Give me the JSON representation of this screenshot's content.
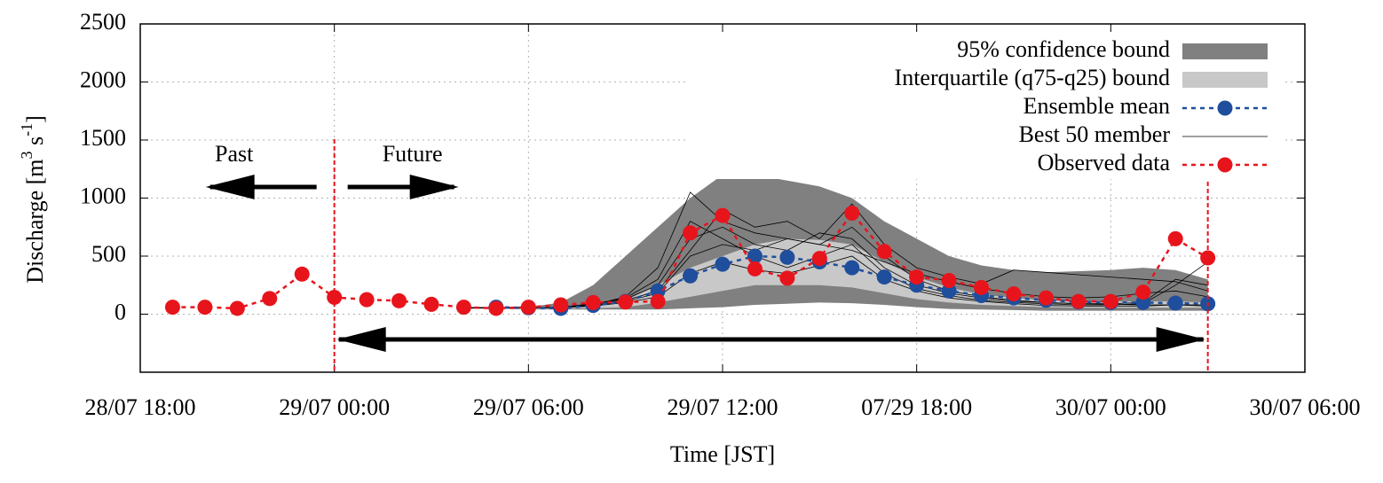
{
  "chart_data": {
    "type": "line",
    "xlabel": "Time [JST]",
    "ylabel": [
      "Discharge [m",
      "3",
      " s",
      "-1",
      "]"
    ],
    "annotations": [
      "Past",
      "Future"
    ],
    "vlines": [
      6,
      33
    ],
    "vline_color": "#e8141c",
    "xlim": [
      0,
      36
    ],
    "ylim": [
      -500,
      2500
    ],
    "xticks": [
      {
        "value": 0,
        "label": "28/07  18:00"
      },
      {
        "value": 6,
        "label": "29/07  00:00"
      },
      {
        "value": 12,
        "label": "29/07  06:00"
      },
      {
        "value": 18,
        "label": "29/07  12:00"
      },
      {
        "value": 24,
        "label": "07/29  18:00"
      },
      {
        "value": 30,
        "label": "30/07  00:00"
      },
      {
        "value": 36,
        "label": "30/07  06:00"
      }
    ],
    "yticks": [
      0,
      500,
      1000,
      1500,
      2000,
      2500
    ],
    "grid": true,
    "legend": "top-right",
    "x": [
      1,
      2,
      3,
      4,
      5,
      6,
      7,
      8,
      9,
      10,
      11,
      12,
      13,
      14,
      15,
      16,
      17,
      18,
      19,
      20,
      21,
      22,
      23,
      24,
      25,
      26,
      27,
      28,
      29,
      30,
      31,
      32,
      33
    ],
    "bands": [
      {
        "name": "95%  confidence bound",
        "color": "#808080",
        "upper": [
          null,
          null,
          null,
          null,
          null,
          null,
          null,
          null,
          null,
          60,
          60,
          60,
          100,
          250,
          500,
          750,
          1000,
          1200,
          1200,
          1150,
          1100,
          1000,
          800,
          650,
          500,
          420,
          380,
          360,
          370,
          380,
          400,
          380,
          300
        ],
        "lower": [
          null,
          null,
          null,
          null,
          null,
          null,
          null,
          null,
          null,
          50,
          45,
          40,
          40,
          40,
          40,
          40,
          50,
          60,
          80,
          90,
          100,
          95,
          80,
          60,
          45,
          40,
          35,
          30,
          30,
          30,
          30,
          30,
          30
        ]
      },
      {
        "name": "Interquartile (q75-q25) bound",
        "color": "#c8c8c8",
        "upper": [
          null,
          null,
          null,
          null,
          null,
          null,
          null,
          null,
          null,
          55,
          55,
          55,
          60,
          80,
          120,
          250,
          400,
          500,
          600,
          650,
          640,
          600,
          450,
          320,
          230,
          170,
          140,
          120,
          110,
          110,
          110,
          110,
          100
        ],
        "lower": [
          null,
          null,
          null,
          null,
          null,
          null,
          null,
          null,
          null,
          45,
          45,
          45,
          48,
          50,
          60,
          100,
          150,
          200,
          250,
          250,
          250,
          230,
          180,
          130,
          100,
          80,
          70,
          60,
          55,
          55,
          55,
          55,
          55
        ]
      }
    ],
    "members": {
      "name": "Best 50 member",
      "color": "#000000",
      "values": [
        [
          null,
          null,
          null,
          null,
          null,
          null,
          null,
          null,
          null,
          55,
          55,
          55,
          60,
          80,
          150,
          400,
          1050,
          800,
          700,
          650,
          600,
          750,
          500,
          300,
          200,
          150,
          120,
          100,
          90,
          85,
          80,
          80,
          70
        ],
        [
          null,
          null,
          null,
          null,
          null,
          null,
          null,
          null,
          null,
          55,
          55,
          55,
          60,
          90,
          130,
          250,
          650,
          750,
          600,
          550,
          700,
          650,
          400,
          250,
          180,
          140,
          110,
          100,
          90,
          90,
          100,
          300,
          250
        ],
        [
          null,
          null,
          null,
          null,
          null,
          null,
          null,
          null,
          null,
          55,
          55,
          55,
          60,
          85,
          140,
          300,
          800,
          650,
          500,
          400,
          500,
          600,
          350,
          220,
          160,
          120,
          100,
          90,
          80,
          80,
          90,
          250,
          450
        ],
        [
          null,
          null,
          null,
          null,
          null,
          null,
          null,
          null,
          null,
          55,
          55,
          55,
          55,
          70,
          100,
          150,
          350,
          450,
          380,
          350,
          420,
          500,
          300,
          200,
          140,
          110,
          90,
          75,
          70,
          70,
          70,
          80,
          80
        ],
        [
          null,
          null,
          null,
          null,
          null,
          null,
          null,
          null,
          null,
          55,
          55,
          55,
          60,
          80,
          120,
          200,
          550,
          900,
          750,
          800,
          650,
          950,
          600,
          400,
          320,
          260,
          380,
          360,
          340,
          320,
          300,
          280,
          200
        ],
        [
          null,
          null,
          null,
          null,
          null,
          null,
          null,
          null,
          null,
          55,
          55,
          55,
          60,
          75,
          110,
          180,
          500,
          600,
          550,
          650,
          600,
          550,
          450,
          350,
          280,
          220,
          180,
          150,
          140,
          150,
          180,
          200,
          150
        ]
      ]
    },
    "series": [
      {
        "name": "Ensemble mean",
        "color": "#1f4e9c",
        "values": [
          null,
          null,
          null,
          null,
          null,
          null,
          null,
          null,
          null,
          null,
          60,
          55,
          50,
          75,
          110,
          200,
          330,
          430,
          500,
          490,
          450,
          400,
          320,
          250,
          200,
          160,
          140,
          120,
          105,
          100,
          100,
          95,
          90
        ]
      },
      {
        "name": "Observed data",
        "color": "#e8141c",
        "values": [
          60,
          60,
          50,
          135,
          345,
          145,
          125,
          115,
          85,
          60,
          50,
          60,
          80,
          100,
          105,
          110,
          700,
          850,
          390,
          310,
          480,
          870,
          540,
          320,
          290,
          230,
          175,
          140,
          110,
          110,
          190,
          650,
          485
        ]
      }
    ]
  }
}
